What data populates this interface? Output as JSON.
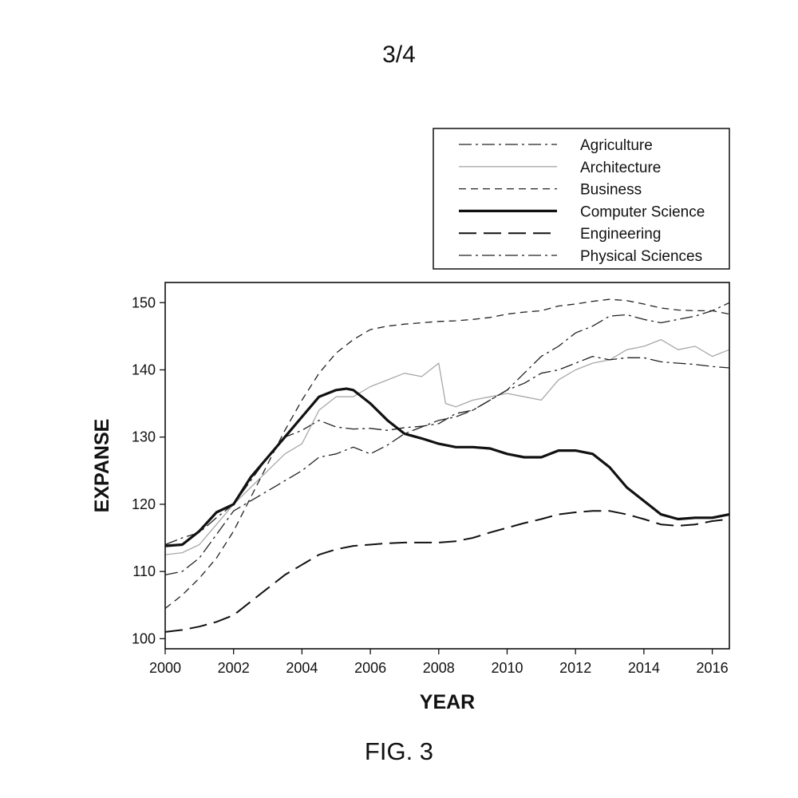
{
  "page_number": "3/4",
  "figure_caption": "FIG. 3",
  "chart_data": {
    "type": "line",
    "title": "",
    "xlabel": "YEAR",
    "ylabel": "EXPANSE",
    "xlim": [
      2000,
      2016.5
    ],
    "ylim": [
      98.5,
      153
    ],
    "x_ticks": [
      2000,
      2002,
      2004,
      2006,
      2008,
      2010,
      2012,
      2014,
      2016
    ],
    "y_ticks": [
      100,
      110,
      120,
      130,
      140,
      150
    ],
    "grid": false,
    "legend_position": "top-right, above plot",
    "series": [
      {
        "name": "Agriculture",
        "style": "dashdot",
        "color": "#222222",
        "x": [
          2000,
          2000.5,
          2001,
          2001.5,
          2002,
          2002.5,
          2003,
          2003.5,
          2004,
          2004.5,
          2005,
          2005.5,
          2006,
          2006.5,
          2007,
          2007.5,
          2008,
          2008.5,
          2009,
          2009.5,
          2010,
          2010.5,
          2011,
          2011.5,
          2012,
          2012.5,
          2013,
          2013.5,
          2014,
          2014.5,
          2015,
          2015.5,
          2016,
          2016.5
        ],
        "values": [
          114.0,
          115.0,
          115.8,
          118.0,
          120.0,
          123.5,
          127.0,
          130.0,
          131.0,
          132.5,
          131.5,
          131.2,
          131.3,
          131.0,
          131.4,
          131.6,
          132.0,
          133.5,
          134.0,
          135.5,
          137.0,
          139.5,
          142.0,
          143.5,
          145.5,
          146.5,
          148.0,
          148.2,
          147.5,
          147.0,
          147.5,
          148.0,
          148.8,
          150.0
        ]
      },
      {
        "name": "Architecture",
        "style": "solid-gray",
        "color": "#a8a8a8",
        "x": [
          2000,
          2000.5,
          2001,
          2001.5,
          2002,
          2002.5,
          2003,
          2003.5,
          2004,
          2004.5,
          2005,
          2005.5,
          2006,
          2006.5,
          2007,
          2007.5,
          2008,
          2008.2,
          2008.5,
          2009,
          2009.5,
          2010,
          2010.5,
          2011,
          2011.5,
          2012,
          2012.5,
          2013,
          2013.5,
          2014,
          2014.5,
          2015,
          2015.5,
          2016,
          2016.5
        ],
        "values": [
          112.5,
          112.8,
          114.0,
          117.0,
          120.0,
          122.5,
          125.0,
          127.5,
          129.0,
          134.0,
          136.0,
          136.0,
          137.5,
          138.5,
          139.5,
          139.0,
          141.0,
          135.0,
          134.5,
          135.5,
          136.0,
          136.5,
          136.0,
          135.5,
          138.5,
          140.0,
          141.0,
          141.5,
          143.0,
          143.5,
          144.5,
          143.0,
          143.5,
          142.0,
          143.0
        ]
      },
      {
        "name": "Business",
        "style": "dashed",
        "color": "#222222",
        "x": [
          2000,
          2000.5,
          2001,
          2001.5,
          2002,
          2002.5,
          2003,
          2003.5,
          2004,
          2004.5,
          2005,
          2005.5,
          2006,
          2006.5,
          2007,
          2007.5,
          2008,
          2008.5,
          2009,
          2009.5,
          2010,
          2010.5,
          2011,
          2011.5,
          2012,
          2012.5,
          2013,
          2013.5,
          2014,
          2014.5,
          2015,
          2015.5,
          2016,
          2016.5
        ],
        "values": [
          104.5,
          106.5,
          109.0,
          112.0,
          116.0,
          121.0,
          126.0,
          131.0,
          135.5,
          139.5,
          142.5,
          144.5,
          146.0,
          146.5,
          146.8,
          147.0,
          147.2,
          147.3,
          147.5,
          147.8,
          148.3,
          148.6,
          148.8,
          149.5,
          149.8,
          150.2,
          150.5,
          150.3,
          149.8,
          149.2,
          148.9,
          148.8,
          148.8,
          148.3
        ]
      },
      {
        "name": "Computer Science",
        "style": "thick-solid",
        "color": "#111111",
        "x": [
          2000,
          2000.5,
          2001,
          2001.5,
          2002,
          2002.5,
          2003,
          2003.5,
          2004,
          2004.5,
          2005,
          2005.3,
          2005.5,
          2006,
          2006.5,
          2007,
          2007.5,
          2008,
          2008.5,
          2009,
          2009.5,
          2010,
          2010.5,
          2011,
          2011.5,
          2012,
          2012.5,
          2013,
          2013.5,
          2014,
          2014.5,
          2015,
          2015.5,
          2016,
          2016.5
        ],
        "values": [
          113.8,
          114.0,
          116.0,
          118.8,
          120.0,
          124.0,
          127.0,
          130.0,
          133.0,
          136.0,
          137.0,
          137.2,
          137.0,
          135.0,
          132.5,
          130.5,
          129.8,
          129.0,
          128.5,
          128.5,
          128.3,
          127.5,
          127.0,
          127.0,
          128.0,
          128.0,
          127.5,
          125.5,
          122.5,
          120.5,
          118.5,
          117.8,
          118.0,
          118.0,
          118.5
        ]
      },
      {
        "name": "Engineering",
        "style": "long-dashed",
        "color": "#111111",
        "x": [
          2000,
          2000.5,
          2001,
          2001.5,
          2002,
          2002.5,
          2003,
          2003.5,
          2004,
          2004.5,
          2005,
          2005.5,
          2006,
          2006.5,
          2007,
          2007.5,
          2008,
          2008.5,
          2009,
          2009.5,
          2010,
          2010.5,
          2011,
          2011.5,
          2012,
          2012.5,
          2013,
          2013.5,
          2014,
          2014.5,
          2015,
          2015.5,
          2016,
          2016.5
        ],
        "values": [
          101.0,
          101.3,
          101.8,
          102.5,
          103.5,
          105.5,
          107.5,
          109.5,
          111.0,
          112.5,
          113.3,
          113.8,
          114.0,
          114.2,
          114.3,
          114.3,
          114.3,
          114.5,
          115.0,
          115.8,
          116.5,
          117.2,
          117.8,
          118.5,
          118.8,
          119.0,
          119.0,
          118.5,
          117.8,
          117.0,
          116.8,
          117.0,
          117.5,
          117.8
        ]
      },
      {
        "name": "Physical Sciences",
        "style": "dashdot",
        "color": "#222222",
        "x": [
          2000,
          2000.5,
          2001,
          2001.5,
          2002,
          2002.5,
          2003,
          2003.5,
          2004,
          2004.5,
          2005,
          2005.5,
          2006,
          2006.5,
          2007,
          2007.5,
          2008,
          2008.5,
          2009,
          2009.5,
          2010,
          2010.5,
          2011,
          2011.5,
          2012,
          2012.5,
          2013,
          2013.5,
          2014,
          2014.5,
          2015,
          2015.5,
          2016,
          2016.5
        ],
        "values": [
          109.5,
          110.0,
          112.0,
          115.5,
          119.0,
          120.5,
          122.0,
          123.5,
          125.0,
          127.0,
          127.5,
          128.5,
          127.5,
          128.8,
          130.5,
          131.5,
          132.5,
          133.0,
          134.0,
          135.5,
          137.0,
          138.0,
          139.5,
          140.0,
          141.0,
          142.0,
          141.5,
          141.8,
          141.8,
          141.2,
          141.0,
          140.8,
          140.5,
          140.3
        ]
      }
    ]
  }
}
